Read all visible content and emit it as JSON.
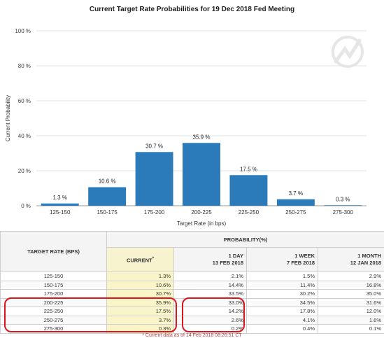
{
  "chart_data": {
    "type": "bar",
    "title": "Current Target Rate Probabilities for 19 Dec 2018 Fed Meeting",
    "xlabel": "Target Rate (in bps)",
    "ylabel": "Current Probability",
    "categories": [
      "125-150",
      "150-175",
      "175-200",
      "200-225",
      "225-250",
      "250-275",
      "275-300"
    ],
    "values": [
      1.3,
      10.6,
      30.7,
      35.9,
      17.5,
      3.7,
      0.3
    ],
    "data_labels": [
      "1.3 %",
      "10.6 %",
      "30.7 %",
      "35.9 %",
      "17.5 %",
      "3.7 %",
      "0.3 %"
    ],
    "ylim": [
      0,
      100
    ],
    "y_ticks": [
      0,
      20,
      40,
      60,
      80,
      100
    ],
    "y_tick_labels": [
      "0 %",
      "20 %",
      "40 %",
      "60 %",
      "80 %",
      "100 %"
    ],
    "grid": true,
    "bar_color": "#2b7bbb"
  },
  "table": {
    "rate_header": "TARGET RATE (BPS)",
    "group_header": "PROBABILITY(%)",
    "columns": [
      {
        "line1": "CURRENT",
        "line2": ""
      },
      {
        "line1": "1 DAY",
        "line2": "13 FEB 2018"
      },
      {
        "line1": "1 WEEK",
        "line2": "7 FEB 2018"
      },
      {
        "line1": "1 MONTH",
        "line2": "12 JAN 2018"
      }
    ],
    "rows": [
      {
        "rate": "125-150",
        "values": [
          "1.3%",
          "2.1%",
          "1.5%",
          "2.9%"
        ]
      },
      {
        "rate": "150-175",
        "values": [
          "10.6%",
          "14.4%",
          "11.4%",
          "16.8%"
        ]
      },
      {
        "rate": "175-200",
        "values": [
          "30.7%",
          "33.5%",
          "30.2%",
          "35.0%"
        ]
      },
      {
        "rate": "200-225",
        "values": [
          "35.9%",
          "33.0%",
          "34.5%",
          "31.6%"
        ]
      },
      {
        "rate": "225-250",
        "values": [
          "17.5%",
          "14.2%",
          "17.8%",
          "12.0%"
        ]
      },
      {
        "rate": "250-275",
        "values": [
          "3.7%",
          "2.6%",
          "4.1%",
          "1.6%"
        ]
      },
      {
        "rate": "275-300",
        "values": [
          "0.3%",
          "0.2%",
          "0.4%",
          "0.1%"
        ]
      }
    ],
    "footnote": "* Current data as of 14 Feb 2018 08:26:51 CT",
    "annotation_color": "#d7161f"
  }
}
